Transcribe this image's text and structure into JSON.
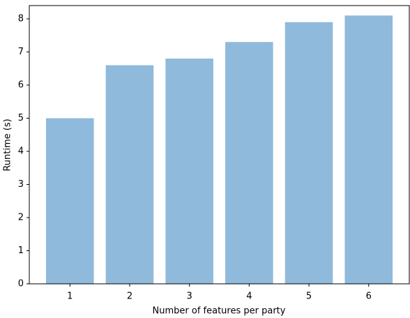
{
  "chart_data": {
    "type": "bar",
    "xlabel": "Number of features per party",
    "ylabel": "Runtime (s)",
    "categories": [
      "1",
      "2",
      "3",
      "4",
      "5",
      "6"
    ],
    "values": [
      5.0,
      6.6,
      6.8,
      7.3,
      7.9,
      8.1
    ],
    "color": "#8fbadb",
    "ylim": [
      0,
      8.4
    ],
    "yticks": [
      0,
      1,
      2,
      3,
      4,
      5,
      6,
      7,
      8
    ],
    "grid": false
  }
}
